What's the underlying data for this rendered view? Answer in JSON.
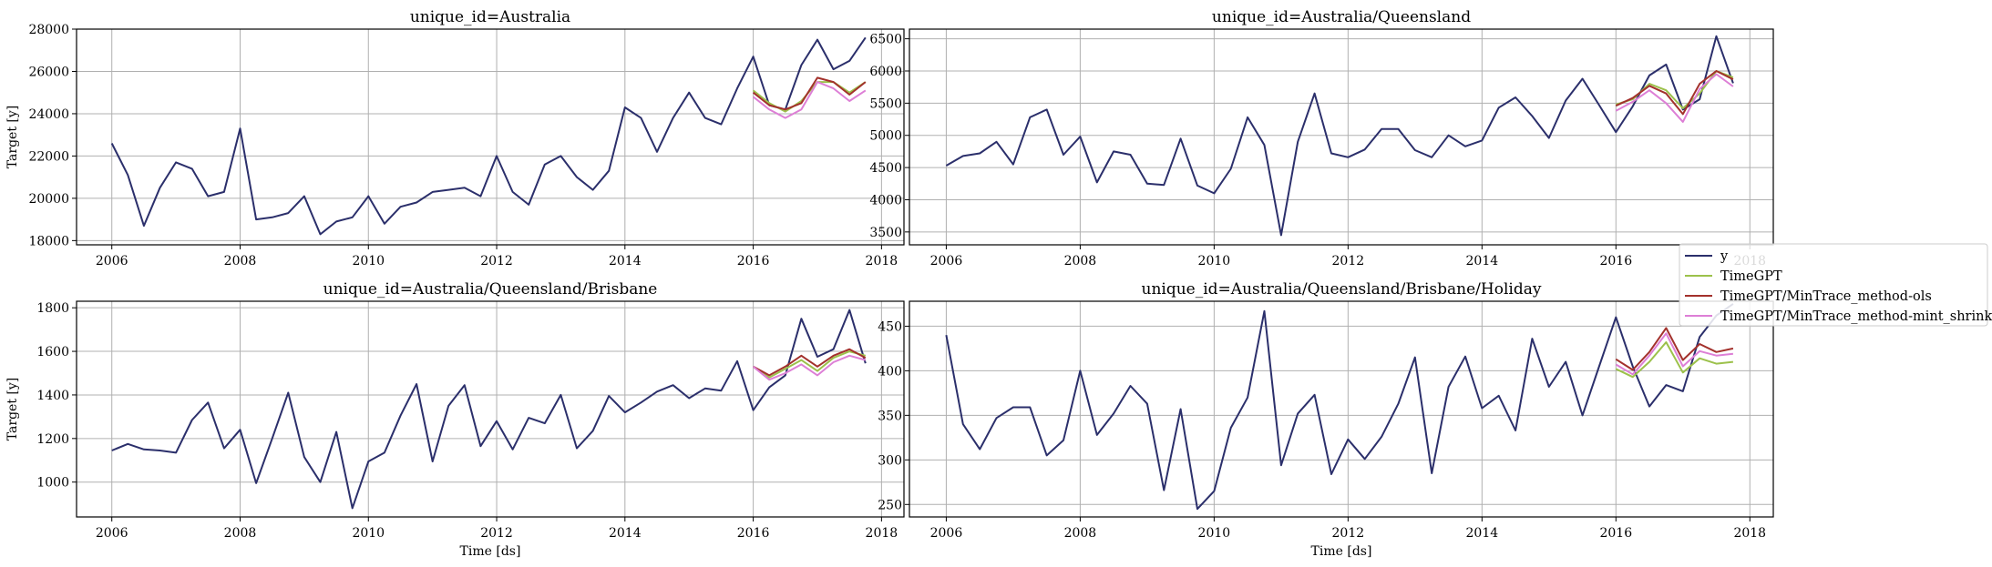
{
  "legend": {
    "entries": [
      {
        "name": "y",
        "color": "#2b2f6b"
      },
      {
        "name": "TimeGPT",
        "color": "#9cc14b"
      },
      {
        "name": "TimeGPT/MinTrace_method-ols",
        "color": "#a3312c"
      },
      {
        "name": "TimeGPT/MinTrace_method-mint_shrink",
        "color": "#dd7fd6"
      }
    ]
  },
  "chart_data": [
    {
      "type": "line",
      "title": "unique_id=Australia",
      "xlabel": "",
      "ylabel": "Target [y]",
      "xlim": [
        2005.45,
        2018.35
      ],
      "ylim": [
        17800,
        28000
      ],
      "xticks": [
        2006,
        2008,
        2010,
        2012,
        2014,
        2016,
        2018
      ],
      "yticks": [
        18000,
        20000,
        22000,
        24000,
        26000,
        28000
      ],
      "grid": true,
      "series": [
        {
          "name": "y",
          "x": [
            2006.0,
            2006.25,
            2006.5,
            2006.75,
            2007.0,
            2007.25,
            2007.5,
            2007.75,
            2008.0,
            2008.25,
            2008.5,
            2008.75,
            2009.0,
            2009.25,
            2009.5,
            2009.75,
            2010.0,
            2010.25,
            2010.5,
            2010.75,
            2011.0,
            2011.25,
            2011.5,
            2011.75,
            2012.0,
            2012.25,
            2012.5,
            2012.75,
            2013.0,
            2013.25,
            2013.5,
            2013.75,
            2014.0,
            2014.25,
            2014.5,
            2014.75,
            2015.0,
            2015.25,
            2015.5,
            2015.75,
            2016.0,
            2016.25,
            2016.5,
            2016.75,
            2017.0,
            2017.25,
            2017.5,
            2017.75
          ],
          "y": [
            22600,
            21100,
            18700,
            20500,
            21700,
            21400,
            20100,
            20300,
            23300,
            19000,
            19100,
            19300,
            20100,
            18300,
            18900,
            19100,
            20100,
            18800,
            19600,
            19800,
            20300,
            20400,
            20500,
            20100,
            22000,
            20300,
            19700,
            21600,
            22000,
            21000,
            20400,
            21300,
            24300,
            23800,
            22200,
            23800,
            25000,
            23800,
            23500,
            25200,
            26700,
            24400,
            24200,
            26300,
            27500,
            26100,
            26500,
            27600
          ]
        },
        {
          "name": "TimeGPT",
          "x": [
            2016.0,
            2016.25,
            2016.5,
            2016.75,
            2017.0,
            2017.25,
            2017.5,
            2017.75
          ],
          "y": [
            25100,
            24500,
            24100,
            24600,
            25500,
            25500,
            25000,
            25500
          ]
        },
        {
          "name": "TimeGPT/MinTrace_method-ols",
          "x": [
            2016.0,
            2016.25,
            2016.5,
            2016.75,
            2017.0,
            2017.25,
            2017.5,
            2017.75
          ],
          "y": [
            25000,
            24400,
            24200,
            24500,
            25700,
            25500,
            24900,
            25500
          ]
        },
        {
          "name": "TimeGPT/MinTrace_method-mint_shrink",
          "x": [
            2016.0,
            2016.25,
            2016.5,
            2016.75,
            2017.0,
            2017.25,
            2017.5,
            2017.75
          ],
          "y": [
            24800,
            24200,
            23800,
            24200,
            25500,
            25200,
            24600,
            25100
          ]
        }
      ]
    },
    {
      "type": "line",
      "title": "unique_id=Australia/Queensland",
      "xlabel": "",
      "ylabel": "",
      "xlim": [
        2005.45,
        2018.35
      ],
      "ylim": [
        3300,
        6650
      ],
      "xticks": [
        2006,
        2008,
        2010,
        2012,
        2014,
        2016,
        2018
      ],
      "yticks": [
        3500,
        4000,
        4500,
        5000,
        5500,
        6000,
        6500
      ],
      "grid": true,
      "series": [
        {
          "name": "y",
          "x": [
            2006.0,
            2006.25,
            2006.5,
            2006.75,
            2007.0,
            2007.25,
            2007.5,
            2007.75,
            2008.0,
            2008.25,
            2008.5,
            2008.75,
            2009.0,
            2009.25,
            2009.5,
            2009.75,
            2010.0,
            2010.25,
            2010.5,
            2010.75,
            2011.0,
            2011.25,
            2011.5,
            2011.75,
            2012.0,
            2012.25,
            2012.5,
            2012.75,
            2013.0,
            2013.25,
            2013.5,
            2013.75,
            2014.0,
            2014.25,
            2014.5,
            2014.75,
            2015.0,
            2015.25,
            2015.5,
            2015.75,
            2016.0,
            2016.25,
            2016.5,
            2016.75,
            2017.0,
            2017.25,
            2017.5,
            2017.75
          ],
          "y": [
            4530,
            4680,
            4720,
            4900,
            4550,
            5280,
            5400,
            4700,
            4980,
            4270,
            4750,
            4700,
            4250,
            4230,
            4950,
            4220,
            4100,
            4480,
            5280,
            4850,
            3450,
            4900,
            5650,
            4720,
            4660,
            4780,
            5100,
            5100,
            4770,
            4660,
            5000,
            4830,
            4920,
            5430,
            5590,
            5300,
            4960,
            5540,
            5880,
            5470,
            5050,
            5450,
            5930,
            6100,
            5400,
            5560,
            6540,
            5810
          ]
        },
        {
          "name": "TimeGPT",
          "x": [
            2016.0,
            2016.25,
            2016.5,
            2016.75,
            2017.0,
            2017.25,
            2017.5,
            2017.75
          ],
          "y": [
            5480,
            5560,
            5800,
            5700,
            5420,
            5650,
            6000,
            5900
          ]
        },
        {
          "name": "TimeGPT/MinTrace_method-ols",
          "x": [
            2016.0,
            2016.25,
            2016.5,
            2016.75,
            2017.0,
            2017.25,
            2017.5,
            2017.75
          ],
          "y": [
            5460,
            5580,
            5770,
            5650,
            5330,
            5800,
            6000,
            5870
          ]
        },
        {
          "name": "TimeGPT/MinTrace_method-mint_shrink",
          "x": [
            2016.0,
            2016.25,
            2016.5,
            2016.75,
            2017.0,
            2017.25,
            2017.5,
            2017.75
          ],
          "y": [
            5380,
            5520,
            5700,
            5500,
            5210,
            5720,
            5950,
            5760
          ]
        }
      ]
    },
    {
      "type": "line",
      "title": "unique_id=Australia/Queensland/Brisbane",
      "xlabel": "Time [ds]",
      "ylabel": "Target [y]",
      "xlim": [
        2005.45,
        2018.35
      ],
      "ylim": [
        840,
        1830
      ],
      "xticks": [
        2006,
        2008,
        2010,
        2012,
        2014,
        2016,
        2018
      ],
      "yticks": [
        1000,
        1200,
        1400,
        1600,
        1800
      ],
      "grid": true,
      "series": [
        {
          "name": "y",
          "x": [
            2006.0,
            2006.25,
            2006.5,
            2006.75,
            2007.0,
            2007.25,
            2007.5,
            2007.75,
            2008.0,
            2008.25,
            2008.5,
            2008.75,
            2009.0,
            2009.25,
            2009.5,
            2009.75,
            2010.0,
            2010.25,
            2010.5,
            2010.75,
            2011.0,
            2011.25,
            2011.5,
            2011.75,
            2012.0,
            2012.25,
            2012.5,
            2012.75,
            2013.0,
            2013.25,
            2013.5,
            2013.75,
            2014.0,
            2014.25,
            2014.5,
            2014.75,
            2015.0,
            2015.25,
            2015.5,
            2015.75,
            2016.0,
            2016.25,
            2016.5,
            2016.75,
            2017.0,
            2017.25,
            2017.5,
            2017.75
          ],
          "y": [
            1145,
            1175,
            1150,
            1145,
            1135,
            1285,
            1365,
            1155,
            1240,
            995,
            1200,
            1410,
            1115,
            1000,
            1230,
            880,
            1095,
            1135,
            1305,
            1450,
            1095,
            1350,
            1445,
            1165,
            1280,
            1150,
            1295,
            1270,
            1400,
            1155,
            1235,
            1395,
            1320,
            1365,
            1415,
            1445,
            1385,
            1430,
            1420,
            1555,
            1330,
            1435,
            1490,
            1750,
            1575,
            1610,
            1790,
            1545
          ]
        },
        {
          "name": "TimeGPT",
          "x": [
            2016.0,
            2016.25,
            2016.5,
            2016.75,
            2017.0,
            2017.25,
            2017.5,
            2017.75
          ],
          "y": [
            1530,
            1480,
            1520,
            1560,
            1510,
            1570,
            1600,
            1580
          ]
        },
        {
          "name": "TimeGPT/MinTrace_method-ols",
          "x": [
            2016.0,
            2016.25,
            2016.5,
            2016.75,
            2017.0,
            2017.25,
            2017.5,
            2017.75
          ],
          "y": [
            1530,
            1490,
            1530,
            1580,
            1530,
            1580,
            1610,
            1570
          ]
        },
        {
          "name": "TimeGPT/MinTrace_method-mint_shrink",
          "x": [
            2016.0,
            2016.25,
            2016.5,
            2016.75,
            2017.0,
            2017.25,
            2017.5,
            2017.75
          ],
          "y": [
            1530,
            1470,
            1500,
            1540,
            1490,
            1550,
            1580,
            1560
          ]
        }
      ]
    },
    {
      "type": "line",
      "title": "unique_id=Australia/Queensland/Brisbane/Holiday",
      "xlabel": "Time [ds]",
      "ylabel": "",
      "xlim": [
        2005.45,
        2018.35
      ],
      "ylim": [
        236,
        478
      ],
      "xticks": [
        2006,
        2008,
        2010,
        2012,
        2014,
        2016,
        2018
      ],
      "yticks": [
        250,
        300,
        350,
        400,
        450
      ],
      "grid": true,
      "series": [
        {
          "name": "y",
          "x": [
            2006.0,
            2006.25,
            2006.5,
            2006.75,
            2007.0,
            2007.25,
            2007.5,
            2007.75,
            2008.0,
            2008.25,
            2008.5,
            2008.75,
            2009.0,
            2009.25,
            2009.5,
            2009.75,
            2010.0,
            2010.25,
            2010.5,
            2010.75,
            2011.0,
            2011.25,
            2011.5,
            2011.75,
            2012.0,
            2012.25,
            2012.5,
            2012.75,
            2013.0,
            2013.25,
            2013.5,
            2013.75,
            2014.0,
            2014.25,
            2014.5,
            2014.75,
            2015.0,
            2015.25,
            2015.5,
            2015.75,
            2016.0,
            2016.25,
            2016.5,
            2016.75,
            2017.0,
            2017.25,
            2017.5,
            2017.75
          ],
          "y": [
            440,
            340,
            312,
            347,
            359,
            359,
            305,
            322,
            400,
            328,
            352,
            383,
            363,
            266,
            357,
            245,
            265,
            336,
            370,
            467,
            294,
            352,
            373,
            284,
            323,
            301,
            326,
            363,
            415,
            285,
            382,
            416,
            358,
            372,
            333,
            436,
            382,
            410,
            350,
            405,
            460,
            405,
            360,
            384,
            377,
            438,
            462,
            475
          ]
        },
        {
          "name": "TimeGPT",
          "x": [
            2016.0,
            2016.25,
            2016.5,
            2016.75,
            2017.0,
            2017.25,
            2017.5,
            2017.75
          ],
          "y": [
            402,
            393,
            410,
            432,
            398,
            414,
            408,
            410
          ]
        },
        {
          "name": "TimeGPT/MinTrace_method-ols",
          "x": [
            2016.0,
            2016.25,
            2016.5,
            2016.75,
            2017.0,
            2017.25,
            2017.5,
            2017.75
          ],
          "y": [
            413,
            401,
            421,
            448,
            412,
            430,
            421,
            425
          ]
        },
        {
          "name": "TimeGPT/MinTrace_method-mint_shrink",
          "x": [
            2016.0,
            2016.25,
            2016.5,
            2016.75,
            2017.0,
            2017.25,
            2017.5,
            2017.75
          ],
          "y": [
            407,
            396,
            417,
            442,
            405,
            422,
            417,
            419
          ]
        }
      ]
    }
  ]
}
